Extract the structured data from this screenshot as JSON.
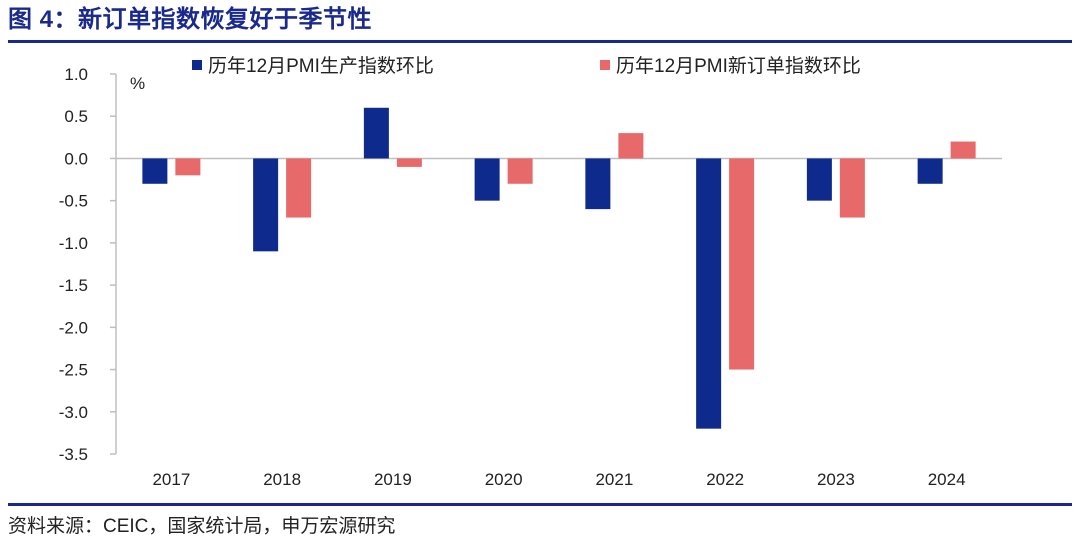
{
  "header": {
    "title": "图 4：新订单指数恢复好于季节性"
  },
  "footer": {
    "source": "资料来源：CEIC，国家统计局，申万宏源研究"
  },
  "chart_data": {
    "type": "bar",
    "title": "图 4：新订单指数恢复好于季节性",
    "ylabel": "%",
    "xlabel": "",
    "ylim": [
      -3.5,
      1.0
    ],
    "yticks": [
      1.0,
      0.5,
      0.0,
      -0.5,
      -1.0,
      -1.5,
      -2.0,
      -2.5,
      -3.0,
      -3.5
    ],
    "ytick_labels": [
      "1.0",
      "0.5",
      "0.0",
      "-0.5",
      "-1.0",
      "-1.5",
      "-2.0",
      "-2.5",
      "-3.0",
      "-3.5"
    ],
    "categories": [
      "2017",
      "2018",
      "2019",
      "2020",
      "2021",
      "2022",
      "2023",
      "2024"
    ],
    "series": [
      {
        "name": "历年12月PMI生产指数环比",
        "color": "#0d2a8c",
        "values": [
          -0.3,
          -1.1,
          0.6,
          -0.5,
          -0.6,
          -3.2,
          -0.5,
          -0.3
        ]
      },
      {
        "name": "历年12月PMI新订单指数环比",
        "color": "#e8696a",
        "values": [
          -0.2,
          -0.7,
          -0.1,
          -0.3,
          0.3,
          -2.5,
          -0.7,
          0.2
        ]
      }
    ],
    "legend_position": "top",
    "grid": false
  }
}
